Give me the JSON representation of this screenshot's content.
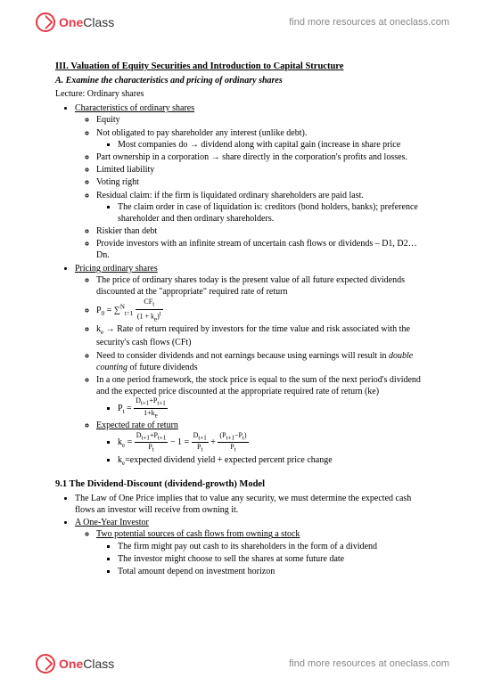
{
  "brand": {
    "one": "One",
    "class": "Class",
    "tagline": "find more resources at oneclass.com"
  },
  "doc": {
    "section_title": "III. Valuation of Equity Securities and Introduction to Capital Structure",
    "subtitle": "A. Examine the characteristics and pricing of ordinary shares",
    "lecture": "Lecture:  Ordinary shares",
    "h1": "Characteristics of ordinary shares",
    "equity": "Equity",
    "b1": "Not obligated to pay shareholder any interest (unlike debt).",
    "b1a": "Most companies do → dividend along with capital gain (increase in share price",
    "b2": "Part ownership in a corporation → share directly in the corporation's profits and losses.",
    "b3": "Limited liability",
    "b4": "Voting right",
    "b5": "Residual claim: if the firm is liquidated ordinary shareholders are paid last.",
    "b5a": "The claim order in case of liquidation is: creditors (bond holders, banks); preference shareholder and then ordinary shareholders.",
    "b6": "Riskier than debt",
    "b7": "Provide investors with an infinite stream of uncertain cash flows or dividends – D1, D2…Dn.",
    "h2": "Pricing ordinary shares",
    "p1": "The price of ordinary shares today is the present value of all future expected dividends discounted at the \"appropriate\" required rate of return",
    "p3txt": " → Rate of return required by investors for the time value and risk associated with the security's cash flows (CFt)",
    "p4a": "Need to consider dividends and not earnings because using earnings will result in ",
    "p4b": "double counting",
    "p4c": " of future dividends",
    "p5": "In a one period framework, the stock price is equal to the sum of the next period's dividend and the expected price discounted at the appropriate required rate of return (ke)",
    "p6": "Expected rate of return",
    "p7": "=expected dividend yield + expected percent price change",
    "sec91": "9.1 The Dividend-Discount (dividend-growth) Model",
    "law": "The Law of One Price implies that to value any security, we must determine the expected cash flows an investor will receive from owning it.",
    "oneyear": "A One-Year Investor",
    "twopot": "Two potential sources of cash flows from owning a stock",
    "c1": "The firm might pay out cash to its shareholders in the form of a dividend",
    "c2": "The investor might choose to sell the shares at some future date",
    "c3": "Total amount depend on investment horizon"
  }
}
